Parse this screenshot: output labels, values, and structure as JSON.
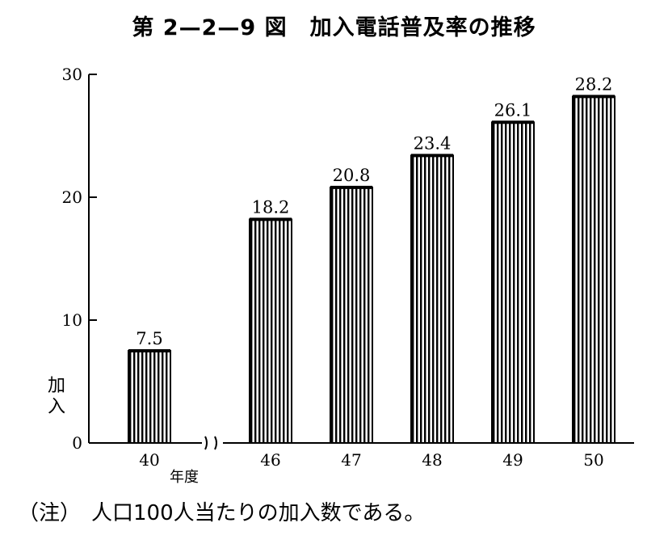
{
  "title": "第 2—2—9 図　加入電話普及率の推移",
  "note": "（注）　人口100人当たりの加入数である。",
  "chart_data": {
    "type": "bar",
    "categories": [
      "40",
      "46",
      "47",
      "48",
      "49",
      "50"
    ],
    "values": [
      7.5,
      18.2,
      20.8,
      23.4,
      26.1,
      28.2
    ],
    "data_labels": [
      "7.5",
      "18.2",
      "20.8",
      "23.4",
      "26.1",
      "28.2"
    ],
    "ylabel": "加入",
    "x_unit_label": "年度",
    "ylim": [
      0,
      30
    ],
    "yticks": [
      0,
      10,
      20,
      30
    ],
    "axis_break_between": [
      "40",
      "46"
    ],
    "bar_fill": "vertical-hatch",
    "color": "#000000",
    "grid": false
  }
}
